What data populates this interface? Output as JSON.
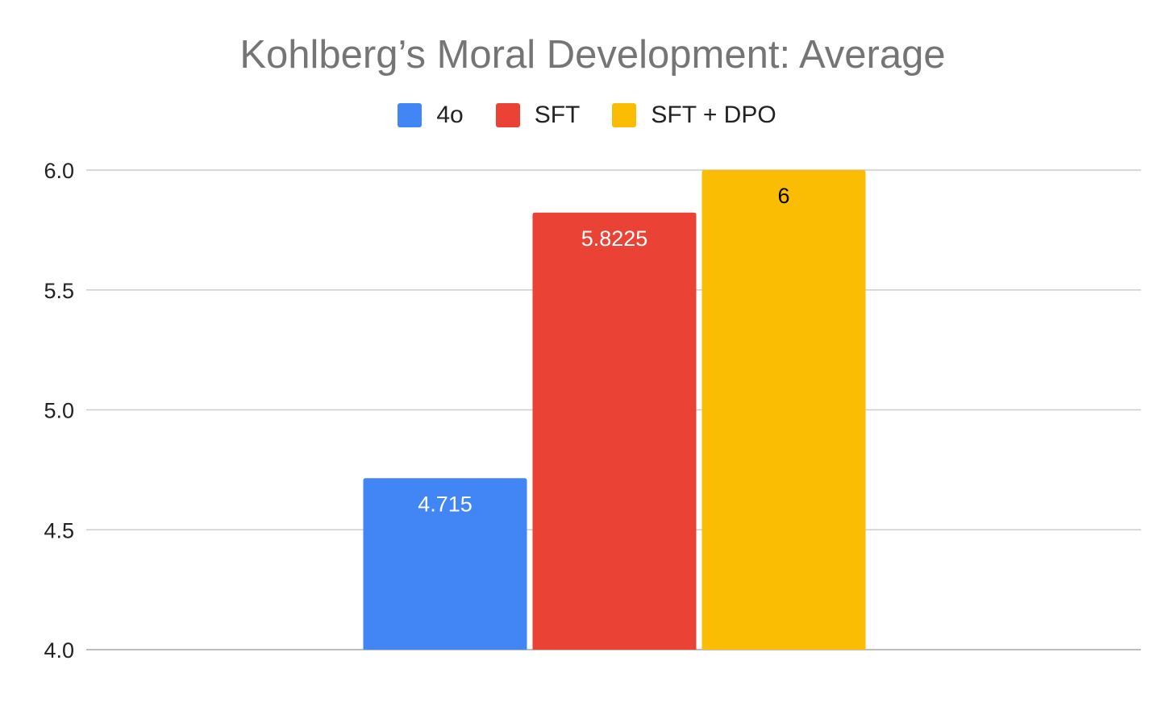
{
  "chart_data": {
    "type": "bar",
    "title": "Kohlberg’s Moral Development: Average",
    "xlabel": "",
    "ylabel": "",
    "ylim": [
      4.0,
      6.0
    ],
    "yticks": [
      "4.0",
      "4.5",
      "5.0",
      "5.5",
      "6.0"
    ],
    "ytick_values": [
      4.0,
      4.5,
      5.0,
      5.5,
      6.0
    ],
    "grid": true,
    "legend_position": "top",
    "categories": [
      ""
    ],
    "series": [
      {
        "name": "4o",
        "color": "#4285f4",
        "values": [
          4.715
        ],
        "label": "4.715",
        "label_color": "#ffffff"
      },
      {
        "name": "SFT",
        "color": "#ea4335",
        "values": [
          5.8225
        ],
        "label": "5.8225",
        "label_color": "#ffffff"
      },
      {
        "name": "SFT + DPO",
        "color": "#fbbc04",
        "values": [
          6
        ],
        "label": "6",
        "label_color": "#000000"
      }
    ]
  }
}
